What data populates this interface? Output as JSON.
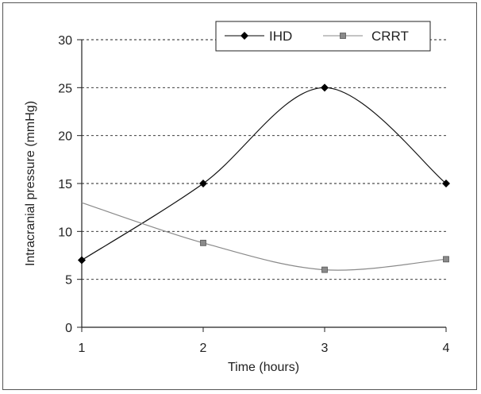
{
  "chart_data": {
    "type": "line",
    "xlabel": "Time (hours)",
    "ylabel": "Intracranial pressure (mmHg)",
    "x": [
      1,
      2,
      3,
      4
    ],
    "xlim": [
      1,
      4
    ],
    "ylim": [
      0,
      30
    ],
    "x_ticks": [
      "1",
      "2",
      "3",
      "4"
    ],
    "y_ticks": [
      "0",
      "5",
      "10",
      "15",
      "20",
      "25",
      "30"
    ],
    "grid": "horizontal dashed",
    "legend_position": "top-right",
    "series": [
      {
        "name": "IHD",
        "marker": "diamond",
        "color": "#000000",
        "values": [
          7,
          15,
          25,
          15
        ],
        "curve_values": [
          7,
          15,
          25,
          15
        ]
      },
      {
        "name": "CRRT",
        "marker": "square",
        "color": "#8a8a8a",
        "line_start": 13,
        "values": [
          13,
          8.8,
          6,
          7.1
        ]
      }
    ]
  }
}
